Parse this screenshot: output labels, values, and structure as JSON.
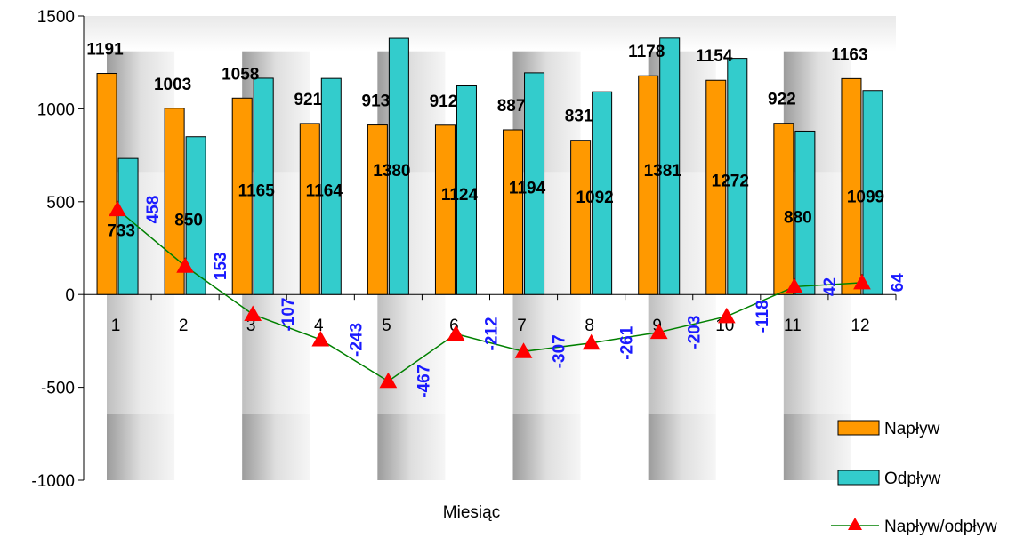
{
  "chart_data": {
    "type": "bar",
    "title": "",
    "xlabel": "Miesiąc",
    "ylabel": "",
    "ylim": [
      -1000,
      1500
    ],
    "yticks": [
      -1000,
      -500,
      0,
      500,
      1000,
      1500
    ],
    "ytick_labels": [
      "-1000",
      "-500",
      "0",
      "500",
      "1000",
      "1500"
    ],
    "categories": [
      "1",
      "2",
      "3",
      "4",
      "5",
      "6",
      "7",
      "8",
      "9",
      "10",
      "11",
      "12"
    ],
    "series": [
      {
        "name": "Napływ",
        "kind": "bar",
        "color": "#ff9900",
        "values": [
          1191,
          1003,
          1058,
          921,
          913,
          912,
          887,
          831,
          1178,
          1154,
          922,
          1163
        ],
        "labels": [
          "1191",
          "1003",
          "1058",
          "921",
          "913",
          "912",
          "887",
          "831",
          "1178",
          "1154",
          "922",
          "1163"
        ]
      },
      {
        "name": "Odpływ",
        "kind": "bar",
        "color": "#33cccc",
        "values": [
          733,
          850,
          1165,
          1164,
          1380,
          1124,
          1194,
          1092,
          1381,
          1272,
          880,
          1099
        ],
        "labels": [
          "733",
          "850",
          "1165",
          "1164",
          "1380",
          "1124",
          "1194",
          "1092",
          "1381",
          "1272",
          "880",
          "1099"
        ]
      },
      {
        "name": "Napływ/odpływ",
        "kind": "line",
        "color": "#008000",
        "marker": "triangle",
        "marker_color": "#ff0000",
        "values": [
          458,
          153,
          -107,
          -243,
          -467,
          -212,
          -307,
          -261,
          -203,
          -118,
          42,
          64
        ],
        "labels": [
          "458",
          "153",
          "-107",
          "-243",
          "-467",
          "-212",
          "-307",
          "-261",
          "-203",
          "-118",
          "42",
          "64"
        ]
      }
    ],
    "grid": false,
    "legend_position": "right-bottom",
    "net_label_color": "#1a1aff"
  }
}
